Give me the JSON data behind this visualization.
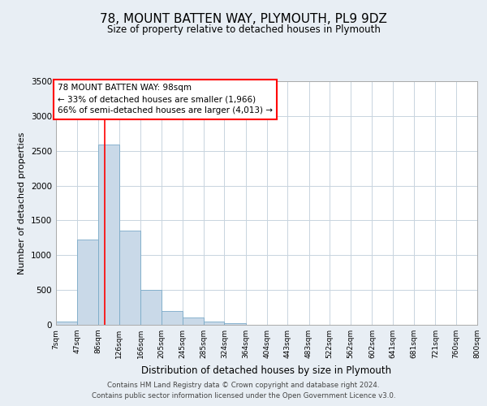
{
  "title": "78, MOUNT BATTEN WAY, PLYMOUTH, PL9 9DZ",
  "subtitle": "Size of property relative to detached houses in Plymouth",
  "xlabel": "Distribution of detached houses by size in Plymouth",
  "ylabel": "Number of detached properties",
  "bar_color": "#c9d9e8",
  "bar_edge_color": "#7aaac8",
  "red_line_x": 98,
  "bin_edges": [
    7,
    47,
    86,
    126,
    166,
    205,
    245,
    285,
    324,
    364,
    404,
    443,
    483,
    522,
    562,
    602,
    641,
    681,
    721,
    760,
    800
  ],
  "bin_labels": [
    "7sqm",
    "47sqm",
    "86sqm",
    "126sqm",
    "166sqm",
    "205sqm",
    "245sqm",
    "285sqm",
    "324sqm",
    "364sqm",
    "404sqm",
    "443sqm",
    "483sqm",
    "522sqm",
    "562sqm",
    "602sqm",
    "641sqm",
    "681sqm",
    "721sqm",
    "760sqm",
    "800sqm"
  ],
  "bar_heights": [
    50,
    1230,
    2590,
    1350,
    500,
    200,
    110,
    50,
    20,
    5,
    5,
    0,
    0,
    0,
    0,
    0,
    0,
    0,
    0,
    0
  ],
  "ylim": [
    0,
    3500
  ],
  "yticks": [
    0,
    500,
    1000,
    1500,
    2000,
    2500,
    3000,
    3500
  ],
  "annotation_title": "78 MOUNT BATTEN WAY: 98sqm",
  "annotation_line1": "← 33% of detached houses are smaller (1,966)",
  "annotation_line2": "66% of semi-detached houses are larger (4,013) →",
  "footer_line1": "Contains HM Land Registry data © Crown copyright and database right 2024.",
  "footer_line2": "Contains public sector information licensed under the Open Government Licence v3.0.",
  "background_color": "#e8eef4",
  "plot_background": "#ffffff",
  "grid_color": "#c8d4df"
}
